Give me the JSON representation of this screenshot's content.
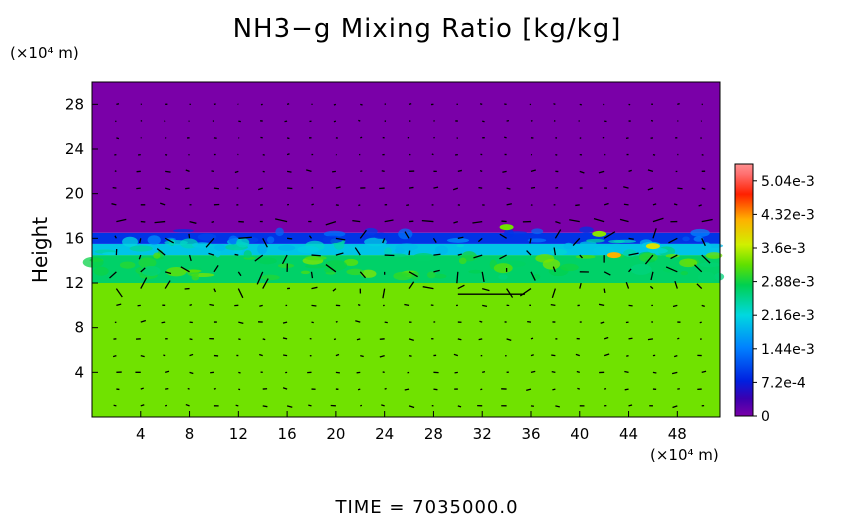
{
  "chart_data": {
    "type": "heatmap",
    "title": "NH3−g Mixing Ratio [kg/kg]",
    "ylabel": "Height",
    "y_unit": "(×10⁴ m)",
    "x_unit": "(×10⁴ m)",
    "xlim": [
      0,
      51.5
    ],
    "ylim": [
      0,
      30
    ],
    "x_ticks": [
      4,
      8,
      12,
      16,
      20,
      24,
      28,
      32,
      36,
      40,
      44,
      48
    ],
    "y_ticks": [
      4,
      8,
      12,
      16,
      20,
      24,
      28
    ],
    "layers": [
      {
        "from_height": 0,
        "to_height": 12,
        "value": 0.0033
      },
      {
        "from_height": 12,
        "to_height": 14.5,
        "value": 0.0027
      },
      {
        "from_height": 14.5,
        "to_height": 15.5,
        "value": 0.002
      },
      {
        "from_height": 15.5,
        "to_height": 16.5,
        "value": 0.0009
      },
      {
        "from_height": 16.5,
        "to_height": 30,
        "value": 0
      }
    ],
    "wind_vectors": "shown",
    "colorbar": {
      "labels": [
        "0",
        "7.2e-4",
        "1.44e-3",
        "2.16e-3",
        "2.88e-3",
        "3.6e-3",
        "4.32e-3",
        "5.04e-3"
      ],
      "values": [
        0,
        0.00072,
        0.00144,
        0.00216,
        0.00288,
        0.0036,
        0.00432,
        0.00504
      ],
      "max": 0.0054
    },
    "colors": {
      "background_purple": "#7a00a8",
      "yellow_green": "#c8f000",
      "green": "#40d000",
      "cyan": "#00d8c8",
      "blue": "#0050f0"
    }
  },
  "footer": {
    "time_text": "TIME  =  7035000.0"
  }
}
